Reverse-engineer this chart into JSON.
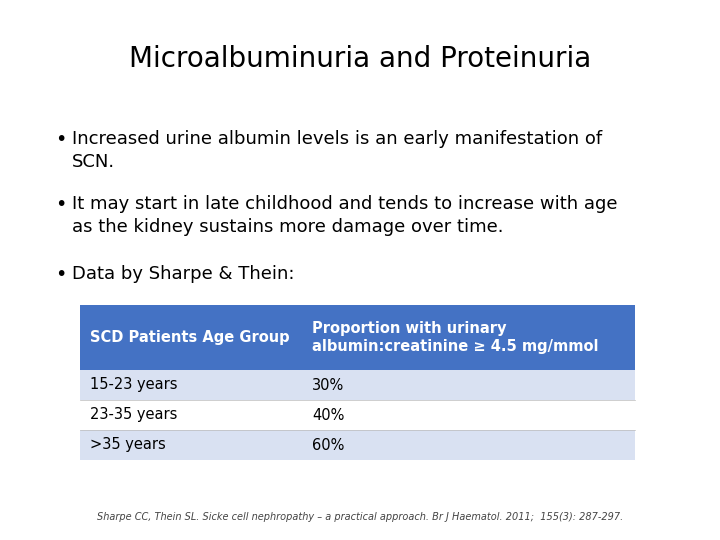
{
  "title": "Microalbuminuria and Proteinuria",
  "title_fontsize": 20,
  "background_color": "#ffffff",
  "bullet_points": [
    "Increased urine albumin levels is an early manifestation of\nSCN.",
    "It may start in late childhood and tends to increase with age\nas the kidney sustains more damage over time.",
    "Data by Sharpe & Thein:"
  ],
  "bullet_fontsize": 13,
  "table_header_bg": "#4472C4",
  "table_row1_bg": "#D9E1F2",
  "table_row2_bg": "#ffffff",
  "table_row3_bg": "#D9E1F2",
  "table_header_text_color": "#ffffff",
  "table_row_text_color": "#000000",
  "table_col1_header": "SCD Patients Age Group",
  "table_col2_header": "Proportion with urinary\nalbumin:creatinine ≥ 4.5 mg/mmol",
  "table_rows": [
    [
      "15-23 years",
      "30%"
    ],
    [
      "23-35 years",
      "40%"
    ],
    [
      ">35 years",
      "60%"
    ]
  ],
  "table_fontsize": 10.5,
  "footer_text": "Sharpe CC, Thein SL. Sicke cell nephropathy – a practical approach. Br J Haematol. 2011;  155(3): 287-297.",
  "footer_fontsize": 7.0
}
